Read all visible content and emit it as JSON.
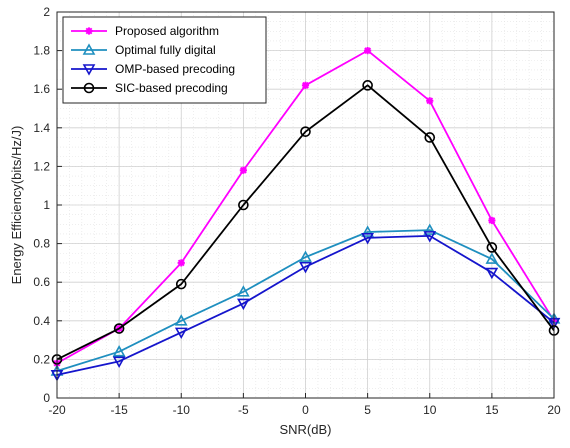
{
  "chart_data": {
    "type": "line",
    "title": "",
    "xlabel": "SNR(dB)",
    "ylabel": "Energy Efficiency(bits/Hz/J)",
    "xlim": [
      -20,
      20
    ],
    "ylim": [
      0,
      2
    ],
    "xticks": [
      -20,
      -15,
      -10,
      -5,
      0,
      5,
      10,
      15,
      20
    ],
    "yticks": [
      0,
      0.2,
      0.4,
      0.6,
      0.8,
      1,
      1.2,
      1.4,
      1.6,
      1.8,
      2
    ],
    "grid": true,
    "minor_grid": true,
    "legend_position": "top-left",
    "x": [
      -20,
      -15,
      -10,
      -5,
      0,
      5,
      10,
      15,
      20
    ],
    "series": [
      {
        "name": "Proposed algorithm",
        "color": "#ff00ff",
        "marker": "asterisk",
        "values": [
          0.18,
          0.36,
          0.7,
          1.18,
          1.62,
          1.8,
          1.54,
          0.92,
          0.4
        ]
      },
      {
        "name": "Optimal fully digital",
        "color": "#1f8fbf",
        "marker": "triangle-up",
        "values": [
          0.14,
          0.24,
          0.4,
          0.55,
          0.73,
          0.86,
          0.87,
          0.72,
          0.41
        ]
      },
      {
        "name": "OMP-based precoding",
        "color": "#1515cc",
        "marker": "triangle-down",
        "values": [
          0.12,
          0.19,
          0.34,
          0.49,
          0.68,
          0.83,
          0.84,
          0.65,
          0.39
        ]
      },
      {
        "name": "SIC-based precoding",
        "color": "#000000",
        "marker": "circle",
        "values": [
          0.2,
          0.36,
          0.59,
          1.0,
          1.38,
          1.62,
          1.35,
          0.78,
          0.35
        ]
      }
    ]
  }
}
